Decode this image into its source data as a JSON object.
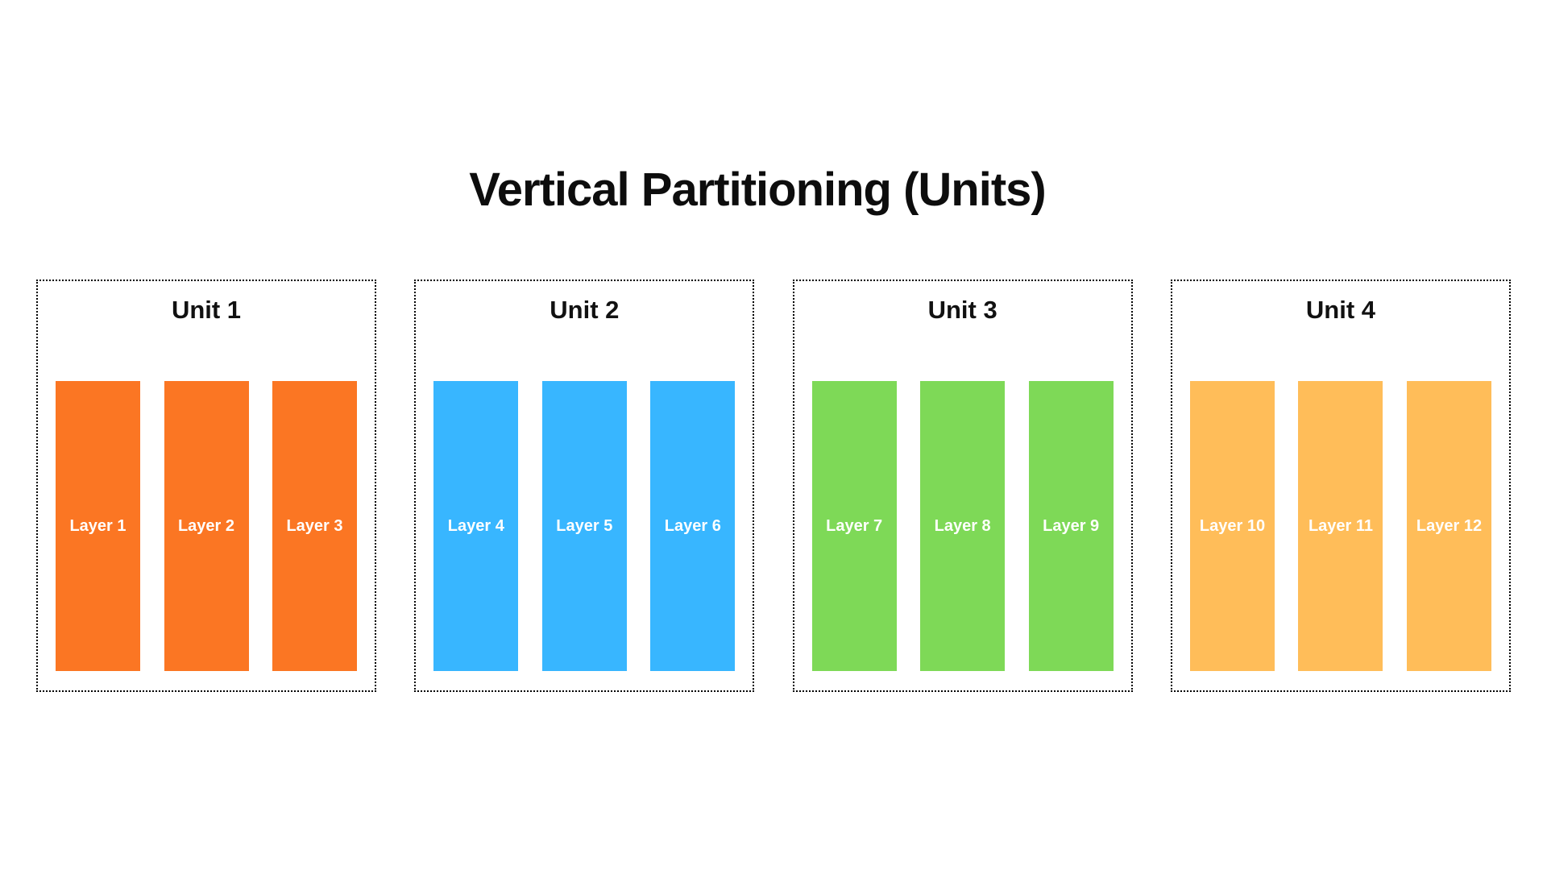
{
  "title": "Vertical Partitioning (Units)",
  "colors": {
    "background": "#ffffff",
    "border": "#000000",
    "title_text": "#0d0d0d",
    "layer_label_text": "#ffffff",
    "unit1_orange": "#fb7623",
    "unit2_blue": "#38b6ff",
    "unit3_green": "#7ed957",
    "unit4_amber": "#ffbd59"
  },
  "units": [
    {
      "label": "Unit 1",
      "color": "#fb7623",
      "layers": [
        "Layer 1",
        "Layer 2",
        "Layer 3"
      ]
    },
    {
      "label": "Unit 2",
      "color": "#38b6ff",
      "layers": [
        "Layer 4",
        "Layer 5",
        "Layer 6"
      ]
    },
    {
      "label": "Unit 3",
      "color": "#7ed957",
      "layers": [
        "Layer 7",
        "Layer 8",
        "Layer 9"
      ]
    },
    {
      "label": "Unit 4",
      "color": "#ffbd59",
      "layers": [
        "Layer 10",
        "Layer 11",
        "Layer 12"
      ]
    }
  ]
}
